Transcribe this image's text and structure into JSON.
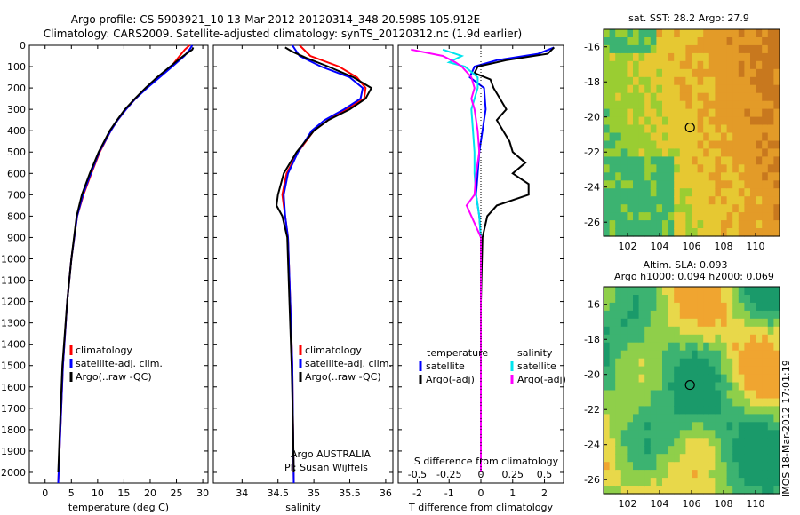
{
  "title_line1": "Argo profile: CS 5903921_10 13-Mar-2012 20120314_348 20.598S 105.912E",
  "title_line2": "Climatology: CARS2009. Satellite-adjusted climatology: synTS_20120312.nc (1.9d earlier)",
  "stamp": "IMOS 18-Mar-2012 17:01:19",
  "colors": {
    "climatology": "#ff0000",
    "satellite": "#0000ff",
    "argo": "#000000",
    "sat_salinity": "#00e5ee",
    "argo_salinity": "#ff00ff"
  },
  "chart_data": [
    {
      "type": "line",
      "xlabel": "temperature (deg C)",
      "ylabel": "",
      "xlim": [
        -3,
        31
      ],
      "ylim": [
        2050,
        0
      ],
      "xticks": [
        "0",
        "5",
        "10",
        "15",
        "20",
        "25",
        "30"
      ],
      "yticks": [
        "0",
        "100",
        "200",
        "300",
        "400",
        "500",
        "600",
        "700",
        "800",
        "900",
        "1000",
        "1100",
        "1200",
        "1300",
        "1400",
        "1500",
        "1600",
        "1700",
        "1800",
        "1900",
        "2000"
      ],
      "legend": [
        "climatology",
        "satellite-adj. clim.",
        "Argo(..raw -QC)"
      ],
      "series": [
        {
          "name": "climatology",
          "depth": [
            0,
            20,
            50,
            100,
            150,
            200,
            250,
            300,
            350,
            400,
            500,
            600,
            700,
            800,
            1000,
            1200,
            1500,
            1800,
            2050
          ],
          "values": [
            27.5,
            26.6,
            25.6,
            24,
            21.6,
            19.3,
            17.2,
            15.4,
            13.8,
            12.5,
            10.4,
            8.8,
            7.3,
            6.1,
            5,
            4.2,
            3.4,
            2.9,
            2.5
          ]
        },
        {
          "name": "satellite-adj. clim.",
          "depth": [
            0,
            20,
            50,
            100,
            150,
            200,
            250,
            300,
            350,
            400,
            500,
            600,
            700,
            800,
            1000,
            1200,
            1500,
            1800,
            2050
          ],
          "values": [
            28,
            27.5,
            26.5,
            24.2,
            21.8,
            19.4,
            17.2,
            15.4,
            13.8,
            12.5,
            10.3,
            8.7,
            7.2,
            6.1,
            5,
            4.2,
            3.4,
            2.9,
            2.5
          ]
        },
        {
          "name": "Argo(..raw -QC)",
          "depth": [
            10,
            20,
            50,
            100,
            150,
            200,
            250,
            300,
            350,
            400,
            500,
            600,
            700,
            800,
            1000,
            1200,
            1500,
            1800,
            2000
          ],
          "values": [
            28.2,
            28,
            26.3,
            23.8,
            21.3,
            19.1,
            17.1,
            15.2,
            13.7,
            12.3,
            10.2,
            8.5,
            7,
            6,
            5,
            4.2,
            3.3,
            2.8,
            2.5
          ]
        }
      ]
    },
    {
      "type": "line",
      "xlabel": "salinity",
      "xlim": [
        33.6,
        36.1
      ],
      "ylim": [
        2050,
        0
      ],
      "xticks": [
        "34",
        "34.5",
        "35",
        "35.5",
        "36"
      ],
      "legend": [
        "climatology",
        "satellite-adj. clim.",
        "Argo(..raw -QC)"
      ],
      "annotations": [
        "Argo AUSTRALIA",
        "PI: Susan Wijffels"
      ],
      "series": [
        {
          "name": "climatology",
          "depth": [
            0,
            50,
            100,
            150,
            200,
            250,
            300,
            350,
            400,
            500,
            600,
            700,
            800,
            900,
            1200,
            1500,
            1800,
            2050
          ],
          "values": [
            34.8,
            34.95,
            35.35,
            35.6,
            35.72,
            35.7,
            35.45,
            35.2,
            35.0,
            34.78,
            34.62,
            34.56,
            34.6,
            34.64,
            34.67,
            34.7,
            34.71,
            34.72
          ]
        },
        {
          "name": "satellite-adj. clim.",
          "depth": [
            0,
            50,
            100,
            150,
            200,
            250,
            300,
            350,
            400,
            500,
            600,
            700,
            800,
            900,
            1200,
            1500,
            1800,
            2050
          ],
          "values": [
            34.7,
            34.8,
            35.1,
            35.5,
            35.68,
            35.65,
            35.42,
            35.15,
            34.97,
            34.78,
            34.64,
            34.58,
            34.6,
            34.64,
            34.67,
            34.7,
            34.71,
            34.72
          ]
        },
        {
          "name": "Argo(..raw -QC)",
          "depth": [
            10,
            30,
            60,
            100,
            150,
            200,
            250,
            300,
            350,
            400,
            500,
            600,
            700,
            750,
            800,
            900,
            1200,
            1500,
            1800,
            2000
          ],
          "values": [
            34.6,
            34.7,
            34.9,
            35.2,
            35.55,
            35.8,
            35.72,
            35.5,
            35.2,
            35.0,
            34.76,
            34.58,
            34.5,
            34.48,
            34.56,
            34.63,
            34.66,
            34.69,
            34.71,
            34.72
          ]
        }
      ]
    },
    {
      "type": "line",
      "xlabel": "T difference from climatology",
      "x2label": "S difference from climatology",
      "xlim": [
        -2.6,
        2.6
      ],
      "ylim": [
        2050,
        0
      ],
      "xticks": [
        "-2",
        "-1",
        "0",
        "1",
        "2"
      ],
      "x2ticks": [
        "-0.5",
        "-0.25",
        "0",
        "0.25",
        "0.5"
      ],
      "legend_temperature": [
        "temperature",
        "satellite",
        "Argo(-adj)"
      ],
      "legend_salinity": [
        "salinity",
        "satellite",
        "Argo(-adj)"
      ],
      "series": [
        {
          "name": "satellite",
          "depth": [
            10,
            40,
            70,
            100,
            150,
            200,
            300,
            400,
            500,
            600,
            700,
            800,
            900,
            1200,
            1600,
            2000
          ],
          "values": [
            2.3,
            1.8,
            0.5,
            -0.2,
            -0.35,
            0.1,
            0.15,
            0.05,
            -0.05,
            -0.1,
            -0.15,
            -0.05,
            0,
            0,
            0,
            0
          ]
        },
        {
          "name": "Argo(-adj)",
          "depth": [
            10,
            40,
            70,
            100,
            130,
            160,
            200,
            250,
            300,
            350,
            400,
            450,
            500,
            550,
            600,
            650,
            700,
            750,
            800,
            900,
            1200,
            1600,
            2000
          ],
          "values": [
            2.3,
            2.1,
            0.8,
            -0.1,
            -0.2,
            0.3,
            0.4,
            0.6,
            0.8,
            0.5,
            0.7,
            0.9,
            1.0,
            1.4,
            1.0,
            1.5,
            1.5,
            0.5,
            0.2,
            0.05,
            0,
            0,
            0
          ]
        },
        {
          "name": "satellite",
          "depth": [
            20,
            50,
            80,
            100,
            150,
            200,
            300,
            400,
            500,
            600,
            700,
            800,
            900,
            1200,
            1600,
            2000
          ],
          "values": [
            -1.2,
            -0.6,
            -1.0,
            -0.5,
            -0.1,
            -0.1,
            -0.3,
            -0.25,
            -0.2,
            -0.2,
            -0.15,
            -0.05,
            0,
            0,
            0,
            0
          ]
        },
        {
          "name": "Argo(-adj)",
          "depth": [
            20,
            50,
            80,
            100,
            150,
            200,
            250,
            300,
            400,
            500,
            600,
            700,
            750,
            800,
            900,
            1200,
            1600,
            2000
          ],
          "values": [
            -2.2,
            -1.2,
            -0.8,
            -0.6,
            -0.3,
            -0.2,
            -0.3,
            -0.2,
            -0.1,
            -0.05,
            -0.15,
            -0.2,
            -0.45,
            -0.3,
            0,
            0,
            0,
            0
          ]
        }
      ]
    },
    {
      "type": "heatmap",
      "title": "sat. SST: 28.2  Argo: 27.9",
      "xlim": [
        100.5,
        111.5
      ],
      "ylim": [
        -26.8,
        -15
      ],
      "xticks": [
        "102",
        "104",
        "106",
        "108",
        "110"
      ],
      "yticks": [
        "-16",
        "-18",
        "-20",
        "-22",
        "-24",
        "-26"
      ],
      "marker": {
        "lon": 105.9,
        "lat": -20.6
      }
    },
    {
      "type": "heatmap",
      "title": "Altim. SLA: 0.093",
      "subtitle": "Argo h1000: 0.094 h2000: 0.069",
      "xlim": [
        100.5,
        111.5
      ],
      "ylim": [
        -26.8,
        -15
      ],
      "xticks": [
        "102",
        "104",
        "106",
        "108",
        "110"
      ],
      "yticks": [
        "-16",
        "-18",
        "-20",
        "-22",
        "-24",
        "-26"
      ],
      "marker": {
        "lon": 105.9,
        "lat": -20.6
      }
    }
  ]
}
